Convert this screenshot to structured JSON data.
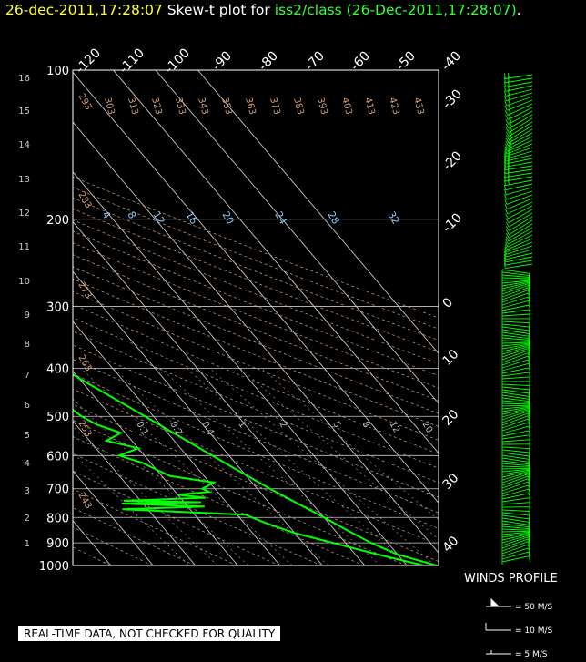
{
  "title": {
    "date_short": "26-dec-2011,17:28:07",
    "prefix": "Skew-t plot for",
    "station": "iss2/class",
    "date_long": "(26-Dec-2011,17:28:07)",
    "suffix": "."
  },
  "footer": {
    "quality_note": "REAL-TIME DATA, NOT CHECKED FOR QUALITY"
  },
  "winds": {
    "title": "WINDS PROFILE",
    "legend": [
      "= 50 M/S",
      "= 10 M/S",
      "= 5 M/S"
    ]
  },
  "colors": {
    "profile": "#00ff00",
    "isobars": "#c8c8c8",
    "isotherms": "#c8c8c8",
    "dry_adiabats": "#d2a078",
    "mixing_ratio": "#8cc8f0",
    "height_labels": "#c8c8c8",
    "title_date": "#ffff33",
    "title_station": "#33ff33"
  },
  "chart_data": {
    "type": "skew-t",
    "pressure_levels_hPa": [
      "100",
      "200",
      "300",
      "400",
      "500",
      "600",
      "700",
      "800",
      "900",
      "1000"
    ],
    "pressure_range_hPa": [
      1000,
      100
    ],
    "height_labels_km": [
      "16",
      "15",
      "14",
      "13",
      "12",
      "11",
      "10",
      "9",
      "8",
      "7",
      "6",
      "5",
      "4",
      "3",
      "2",
      "1"
    ],
    "isotherm_labels_top": [
      "-120",
      "-110",
      "-100",
      "-90",
      "-80",
      "-70",
      "-60",
      "-50",
      "-40"
    ],
    "isotherm_labels_right": [
      "-30",
      "-20",
      "-10",
      "0",
      "10",
      "20",
      "30",
      "40"
    ],
    "dry_adiabat_labels_top": [
      "303",
      "313",
      "323",
      "333",
      "343",
      "353",
      "363",
      "373",
      "383",
      "393",
      "403",
      "413",
      "423",
      "433"
    ],
    "dry_adiabat_labels_left": [
      "293",
      "283",
      "273",
      "263",
      "253",
      "243"
    ],
    "mixing_ratio_labels_upper": [
      "4",
      "8",
      "12",
      "16",
      "20",
      "24",
      "28",
      "32"
    ],
    "mixing_ratio_labels_lower": [
      "0.1",
      "0.2",
      "0.4",
      "1",
      "2",
      "5",
      "8",
      "12",
      "20"
    ],
    "temperature_profile": [
      {
        "p": 1000,
        "t": 17
      },
      {
        "p": 950,
        "t": 10
      },
      {
        "p": 900,
        "t": 6
      },
      {
        "p": 850,
        "t": 3
      },
      {
        "p": 800,
        "t": 0
      },
      {
        "p": 700,
        "t": -7
      },
      {
        "p": 600,
        "t": -14
      },
      {
        "p": 500,
        "t": -22
      },
      {
        "p": 400,
        "t": -32
      },
      {
        "p": 350,
        "t": -38
      },
      {
        "p": 300,
        "t": -46
      },
      {
        "p": 250,
        "t": -52
      },
      {
        "p": 200,
        "t": -57
      },
      {
        "p": 170,
        "t": -60
      },
      {
        "p": 150,
        "t": -60
      },
      {
        "p": 130,
        "t": -63
      },
      {
        "p": 115,
        "t": -66
      },
      {
        "p": 100,
        "t": -68
      }
    ],
    "dewpoint_profile": [
      {
        "p": 1000,
        "t": 14
      },
      {
        "p": 960,
        "t": 7
      },
      {
        "p": 930,
        "t": 2
      },
      {
        "p": 900,
        "t": -3
      },
      {
        "p": 860,
        "t": -10
      },
      {
        "p": 820,
        "t": -15
      },
      {
        "p": 790,
        "t": -18
      },
      {
        "p": 770,
        "t": -46
      },
      {
        "p": 760,
        "t": -26
      },
      {
        "p": 750,
        "t": -45
      },
      {
        "p": 745,
        "t": -26
      },
      {
        "p": 740,
        "t": -44
      },
      {
        "p": 730,
        "t": -24
      },
      {
        "p": 720,
        "t": -30
      },
      {
        "p": 710,
        "t": -22
      },
      {
        "p": 700,
        "t": -23
      },
      {
        "p": 680,
        "t": -19
      },
      {
        "p": 660,
        "t": -28
      },
      {
        "p": 640,
        "t": -30
      },
      {
        "p": 620,
        "t": -32
      },
      {
        "p": 600,
        "t": -36
      },
      {
        "p": 580,
        "t": -30
      },
      {
        "p": 560,
        "t": -36
      },
      {
        "p": 540,
        "t": -31
      },
      {
        "p": 520,
        "t": -35
      },
      {
        "p": 500,
        "t": -37
      },
      {
        "p": 480,
        "t": -38
      },
      {
        "p": 460,
        "t": -50
      },
      {
        "p": 440,
        "t": -52
      },
      {
        "p": 430,
        "t": -58
      },
      {
        "p": 415,
        "t": -63
      },
      {
        "p": 400,
        "t": -61
      },
      {
        "p": 380,
        "t": -57
      },
      {
        "p": 360,
        "t": -52
      },
      {
        "p": 345,
        "t": -51
      },
      {
        "p": 330,
        "t": -53
      },
      {
        "p": 310,
        "t": -56
      },
      {
        "p": 300,
        "t": -58
      },
      {
        "p": 280,
        "t": -61
      },
      {
        "p": 250,
        "t": -64
      },
      {
        "p": 200,
        "t": -70
      },
      {
        "p": 170,
        "t": -75
      },
      {
        "p": 150,
        "t": -80
      },
      {
        "p": 130,
        "t": -86
      },
      {
        "p": 115,
        "t": -90
      },
      {
        "p": 100,
        "t": -92
      }
    ]
  }
}
